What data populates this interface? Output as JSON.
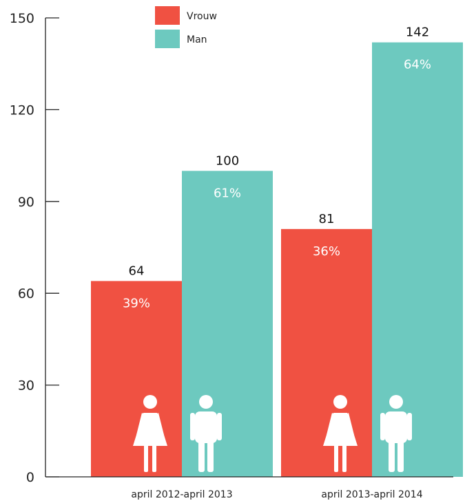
{
  "chart_data": {
    "type": "bar",
    "categories": [
      "april 2012-april 2013",
      "april 2013-april 2014"
    ],
    "series": [
      {
        "name": "Vrouw",
        "values": [
          64,
          81
        ],
        "labels": [
          "39%",
          "36%"
        ],
        "color": "#f05142",
        "icon": "woman-icon"
      },
      {
        "name": "Man",
        "values": [
          100,
          142
        ],
        "labels": [
          "61%",
          "64%"
        ],
        "color": "#6dc9bf",
        "icon": "man-icon"
      }
    ],
    "ylim": [
      0,
      150
    ],
    "yticks": [
      0,
      30,
      60,
      90,
      120,
      150
    ],
    "grid": false,
    "legend": "top-center"
  }
}
